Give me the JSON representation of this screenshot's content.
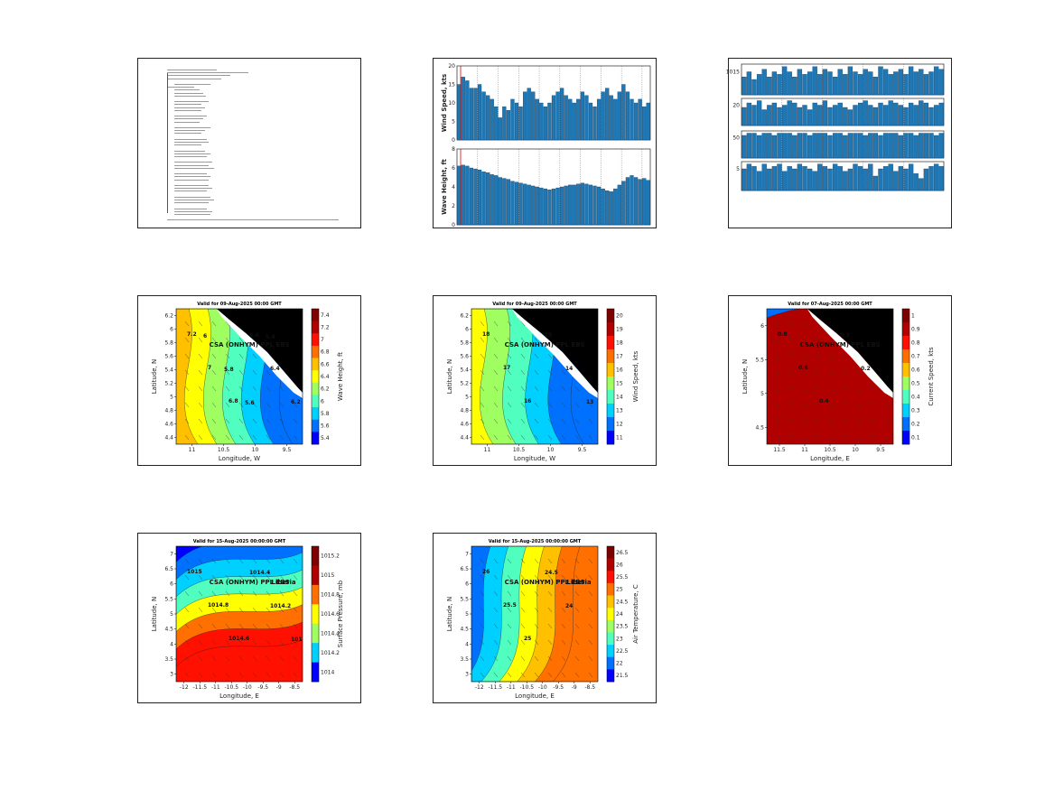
{
  "maps": [
    {
      "id": "wave-height",
      "title": "Valid for 09-Aug-2025 00:00 GMT",
      "station": "CSA (ONHYM) PPL EBS",
      "xlabel": "Longitude, W",
      "ylabel": "Latitude, N",
      "cbar_label": "Wave Height, ft",
      "xticks": [
        "11",
        "10.5",
        "10",
        "9.5"
      ],
      "yticks": [
        "6.2",
        "6",
        "5.8",
        "5.6",
        "5.4",
        "5.2",
        "5",
        "4.8",
        "4.6",
        "4.4"
      ],
      "cbar_ticks": [
        "7.4",
        "7.2",
        "7",
        "6.8",
        "6.6",
        "6.4",
        "6.2",
        "6",
        "5.8",
        "5.6",
        "5.4"
      ],
      "contour_labels": [
        "7.2",
        "7",
        "6.8",
        "6.6",
        "6.4",
        "6.2",
        "6",
        "5.8",
        "5.6",
        "5.4"
      ]
    },
    {
      "id": "wind-speed",
      "title": "Valid for 09-Aug-2025 00:00 GMT",
      "station": "CSA (ONHYM) PPL EBS",
      "xlabel": "Longitude, W",
      "ylabel": "Latitude, N",
      "cbar_label": "Wind Speed, kts",
      "xticks": [
        "11",
        "10.5",
        "10",
        "9.5"
      ],
      "yticks": [
        "6.2",
        "6",
        "5.8",
        "5.6",
        "5.4",
        "5.2",
        "5",
        "4.8",
        "4.6",
        "4.4"
      ],
      "cbar_ticks": [
        "20",
        "19",
        "18",
        "17",
        "16",
        "15",
        "14",
        "13",
        "12",
        "11"
      ],
      "contour_labels": [
        "18",
        "17",
        "16",
        "15",
        "14",
        "13"
      ]
    },
    {
      "id": "current-speed",
      "title": "Valid for 07-Aug-2025 00:00 GMT",
      "station": "CSA (ONHYM) PPL EBS",
      "xlabel": "Longitude, E",
      "ylabel": "Latitude, N",
      "cbar_label": "Current Speed, kts",
      "xticks": [
        "11.5",
        "11",
        "10.5",
        "10",
        "9.5"
      ],
      "yticks": [
        "6",
        "5.5",
        "5",
        "4.5"
      ],
      "cbar_ticks": [
        "1",
        "0.9",
        "0.8",
        "0.7",
        "0.6",
        "0.5",
        "0.4",
        "0.3",
        "0.2",
        "0.1"
      ],
      "contour_labels": [
        "0.8",
        "0.6",
        "0.4",
        "0.3",
        "0.2"
      ]
    },
    {
      "id": "surface-pressure",
      "title": "Valid for 15-Aug-2025 00:00:00 GMT",
      "station": "CSA (ONHYM) PPL EBS",
      "region": "Liberia",
      "xlabel": "Longitude, E",
      "ylabel": "Latitude, N",
      "cbar_label": "Surface Pressure, mb",
      "xticks": [
        "-12",
        "-11.5",
        "-11",
        "-10.5",
        "-10",
        "-9.5",
        "-9",
        "-8.5"
      ],
      "yticks": [
        "7",
        "6.5",
        "6",
        "5.5",
        "5",
        "4.5",
        "4",
        "3.5",
        "3"
      ],
      "cbar_ticks": [
        "1015.2",
        "1015",
        "1014.8",
        "1014.6",
        "1014.4",
        "1014.2",
        "1014"
      ],
      "contour_labels": [
        "1015",
        "1014.8",
        "1014.6",
        "1014.4",
        "1014.2",
        "1014"
      ]
    },
    {
      "id": "air-temperature",
      "title": "Valid for 15-Aug-2025 00:00:00 GMT",
      "station": "CSA (ONHYM) PPL EBS",
      "region": "Liberia",
      "xlabel": "Longitude, E",
      "ylabel": "Latitude, N",
      "cbar_label": "Air Temperature, C",
      "xticks": [
        "-12",
        "-11.5",
        "-11",
        "-10.5",
        "-10",
        "-9.5",
        "-9",
        "-8.5"
      ],
      "yticks": [
        "7",
        "6.5",
        "6",
        "5.5",
        "5",
        "4.5",
        "4",
        "3.5",
        "3"
      ],
      "cbar_ticks": [
        "26.5",
        "26",
        "25.5",
        "25",
        "24.5",
        "24",
        "23.5",
        "23",
        "22.5",
        "22",
        "21.5"
      ],
      "contour_labels": [
        "26",
        "25.5",
        "25",
        "24.5",
        "24"
      ]
    }
  ],
  "colormap": [
    "#00008f",
    "#0000ff",
    "#0070ff",
    "#00d0ff",
    "#50ffc0",
    "#a0ff60",
    "#ffff00",
    "#ffc000",
    "#ff7000",
    "#ff1000",
    "#b00000",
    "#7f0000"
  ],
  "chart_data": [
    {
      "type": "bar",
      "id": "wind-speed-timeseries",
      "ylabel": "Wind Speed, kts",
      "ylim": [
        0,
        20
      ],
      "yticks": [
        "20",
        "15",
        "10",
        "5",
        "0"
      ],
      "values": [
        15,
        17,
        16,
        14,
        14,
        15,
        13,
        12,
        11,
        9,
        6,
        9,
        8,
        11,
        10,
        9,
        13,
        14,
        13,
        11,
        10,
        9,
        10,
        12,
        13,
        14,
        12,
        11,
        10,
        11,
        13,
        12,
        10,
        9,
        11,
        13,
        14,
        12,
        11,
        13,
        15,
        13,
        11,
        10,
        11,
        9,
        10
      ],
      "color": "#1f77b4"
    },
    {
      "type": "bar",
      "id": "wave-height-timeseries",
      "ylabel": "Wave Height, ft",
      "ylim": [
        0,
        8
      ],
      "yticks": [
        "8",
        "6",
        "4",
        "2",
        "0"
      ],
      "values": [
        6.2,
        6.3,
        6.2,
        6.0,
        5.9,
        5.8,
        5.6,
        5.5,
        5.3,
        5.2,
        5.0,
        4.9,
        4.8,
        4.6,
        4.5,
        4.4,
        4.3,
        4.2,
        4.1,
        4.0,
        3.9,
        3.8,
        3.7,
        3.8,
        3.9,
        4.0,
        4.1,
        4.2,
        4.2,
        4.3,
        4.4,
        4.3,
        4.2,
        4.1,
        4.0,
        3.8,
        3.6,
        3.5,
        3.8,
        4.2,
        4.6,
        5.0,
        5.2,
        5.0,
        4.8,
        4.9,
        4.7
      ],
      "color": "#1f77b4"
    },
    {
      "type": "bar",
      "id": "multi-panel-1",
      "yticks": [
        "1015"
      ],
      "values": [
        7,
        9,
        6,
        8,
        10,
        7,
        9,
        8,
        11,
        9,
        7,
        10,
        8,
        9,
        11,
        8,
        10,
        9,
        7,
        10,
        8,
        11,
        9,
        8,
        10,
        9,
        7,
        11,
        10,
        8,
        9,
        10,
        8,
        11,
        9,
        10,
        8,
        9,
        11,
        10
      ],
      "ylim": [
        0,
        12
      ],
      "color": "#1f77b4"
    },
    {
      "type": "bar",
      "id": "multi-panel-2",
      "yticks": [
        "20"
      ],
      "values": [
        8,
        10,
        9,
        11,
        7,
        9,
        10,
        8,
        9,
        11,
        10,
        8,
        9,
        7,
        10,
        9,
        11,
        8,
        9,
        10,
        8,
        7,
        9,
        10,
        11,
        9,
        8,
        10,
        9,
        11,
        10,
        9,
        8,
        10,
        9,
        11,
        10,
        8,
        9,
        10
      ],
      "ylim": [
        0,
        12
      ],
      "color": "#1f77b4"
    },
    {
      "type": "bar",
      "id": "multi-panel-3",
      "yticks": [
        "50"
      ],
      "values": [
        10,
        11,
        11,
        10,
        11,
        11,
        10,
        11,
        11,
        11,
        10,
        11,
        11,
        10,
        11,
        11,
        11,
        10,
        11,
        11,
        10,
        11,
        11,
        11,
        10,
        11,
        11,
        10,
        11,
        11,
        11,
        10,
        11,
        11,
        10,
        11,
        11,
        11,
        10,
        11
      ],
      "ylim": [
        0,
        12
      ],
      "color": "#1f77b4"
    },
    {
      "type": "bar",
      "id": "multi-panel-4",
      "yticks": [
        "5"
      ],
      "values": [
        9,
        11,
        10,
        8,
        11,
        9,
        10,
        11,
        8,
        10,
        9,
        11,
        10,
        9,
        8,
        11,
        10,
        9,
        11,
        10,
        8,
        9,
        11,
        10,
        9,
        11,
        6,
        9,
        10,
        11,
        8,
        10,
        9,
        11,
        7,
        5,
        9,
        10,
        11,
        10
      ],
      "ylim": [
        0,
        12
      ],
      "color": "#1f77b4"
    }
  ]
}
